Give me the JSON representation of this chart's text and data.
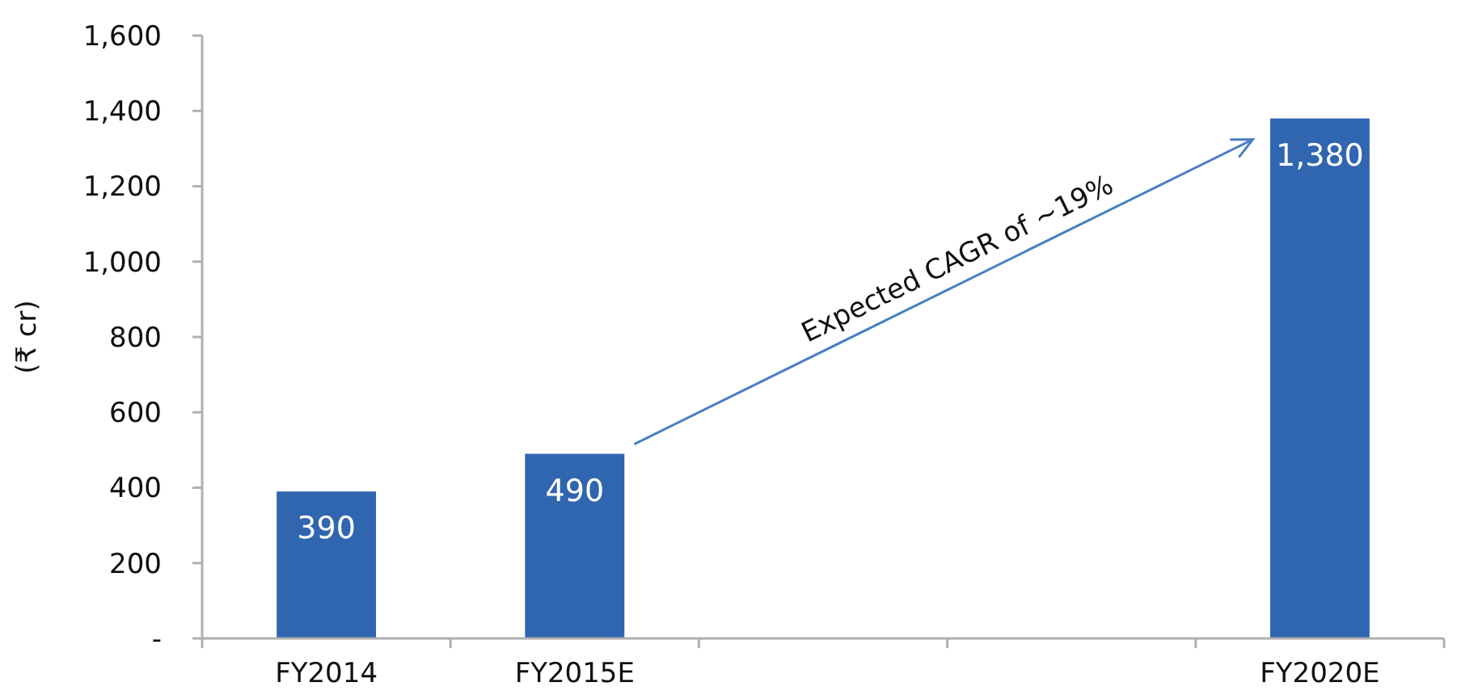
{
  "chart_data": {
    "type": "bar",
    "ylabel": "(₹ cr)",
    "categories": [
      "FY2014",
      "FY2015E",
      null,
      null,
      "FY2020E"
    ],
    "values": [
      390,
      490,
      null,
      null,
      1380
    ],
    "color": "#3065b0",
    "value_labels": [
      "390",
      "490",
      null,
      null,
      "1,380"
    ],
    "ylim": [
      0,
      1600
    ],
    "yticks": [
      {
        "value": 0,
        "label": "-"
      },
      200,
      400,
      600,
      800,
      {
        "value": 1000,
        "label": "1,000"
      },
      {
        "value": 1200,
        "label": "1,200"
      },
      {
        "value": 1400,
        "label": "1,400"
      },
      {
        "value": 1600,
        "label": "1,600"
      }
    ],
    "grid": false,
    "annotations": [
      "Expected CAGR of ~19%"
    ]
  }
}
